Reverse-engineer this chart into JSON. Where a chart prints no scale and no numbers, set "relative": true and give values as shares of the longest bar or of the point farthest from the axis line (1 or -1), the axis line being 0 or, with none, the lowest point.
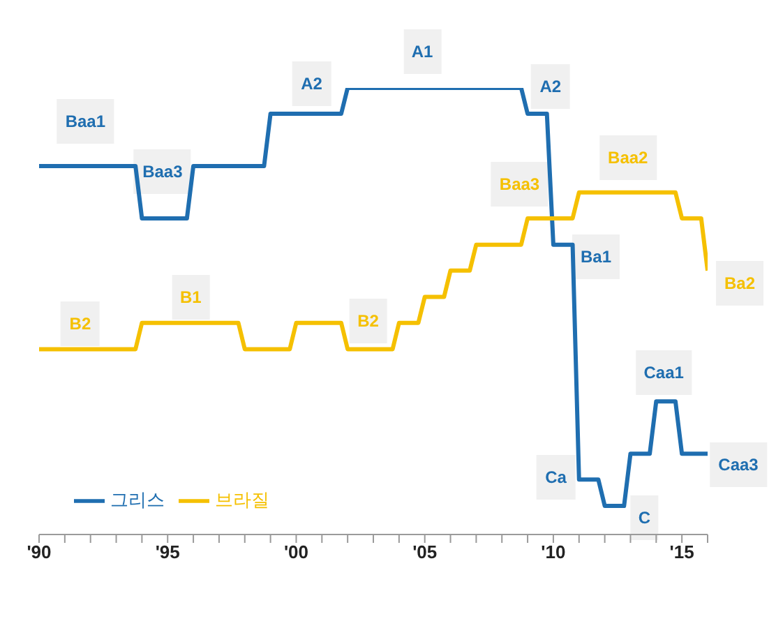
{
  "chart_data": {
    "type": "line",
    "relative": true,
    "xlim": [
      1990,
      2016
    ],
    "xticks": [
      {
        "value": 1990,
        "label": "'90"
      },
      {
        "value": 1991,
        "label": null
      },
      {
        "value": 1992,
        "label": null
      },
      {
        "value": 1993,
        "label": null
      },
      {
        "value": 1994,
        "label": null
      },
      {
        "value": 1995,
        "label": "'95"
      },
      {
        "value": 1996,
        "label": null
      },
      {
        "value": 1997,
        "label": null
      },
      {
        "value": 1998,
        "label": null
      },
      {
        "value": 1999,
        "label": null
      },
      {
        "value": 2000,
        "label": "'00"
      },
      {
        "value": 2001,
        "label": null
      },
      {
        "value": 2002,
        "label": null
      },
      {
        "value": 2003,
        "label": null
      },
      {
        "value": 2004,
        "label": null
      },
      {
        "value": 2005,
        "label": "'05"
      },
      {
        "value": 2006,
        "label": null
      },
      {
        "value": 2007,
        "label": null
      },
      {
        "value": 2008,
        "label": null
      },
      {
        "value": 2009,
        "label": null
      },
      {
        "value": 2010,
        "label": "'10"
      },
      {
        "value": 2011,
        "label": null
      },
      {
        "value": 2012,
        "label": null
      },
      {
        "value": 2013,
        "label": null
      },
      {
        "value": 2014,
        "label": null
      },
      {
        "value": 2015,
        "label": "'15"
      },
      {
        "value": 2016,
        "label": null
      }
    ],
    "series": [
      {
        "name": "그리스",
        "color": "#1f6eb0",
        "x": [
          1990,
          1993.75,
          1994,
          1995.75,
          1996,
          1998.75,
          1999,
          2001.75,
          2002,
          2008.75,
          2009,
          2009.75,
          2010,
          2010.75,
          2011,
          2011.75,
          2012,
          2012.75,
          2013,
          2013.75,
          2014,
          2014.75,
          2015,
          2016
        ],
        "values": [
          0.825,
          0.825,
          0.708,
          0.708,
          0.825,
          0.825,
          0.942,
          0.942,
          1.0,
          1.0,
          0.942,
          0.942,
          0.649,
          0.649,
          0.123,
          0.123,
          0.064,
          0.064,
          0.181,
          0.181,
          0.298,
          0.298,
          0.181,
          0.181
        ]
      },
      {
        "name": "브라질",
        "color": "#f5c000",
        "x": [
          1990,
          1993.75,
          1994,
          1997.75,
          1998,
          1999.75,
          2000,
          2001.75,
          2002,
          2003.75,
          2004,
          2004.75,
          2005,
          2005.75,
          2006,
          2006.75,
          2007,
          2008.75,
          2009,
          2010.75,
          2011,
          2014.75,
          2015,
          2015.75,
          2016
        ],
        "values": [
          0.415,
          0.415,
          0.474,
          0.474,
          0.415,
          0.415,
          0.474,
          0.474,
          0.415,
          0.415,
          0.474,
          0.474,
          0.532,
          0.532,
          0.591,
          0.591,
          0.649,
          0.649,
          0.708,
          0.708,
          0.766,
          0.766,
          0.708,
          0.708,
          0.591
        ]
      }
    ],
    "annotations": [
      {
        "text": "Baa1",
        "x": 1991.8,
        "y": 0.825
      },
      {
        "text": "Baa3",
        "x": 1994.8,
        "y": 0.708
      },
      {
        "text": "A2",
        "x": 2000.6,
        "y": 0.942
      },
      {
        "text": "A1",
        "x": 2004.9,
        "y": 1.0
      },
      {
        "text": "A2",
        "x": 2009.4,
        "y": 0.942
      },
      {
        "text": "Ba1",
        "x": 2010.3,
        "y": 0.649
      },
      {
        "text": "Ca",
        "x": 2011.4,
        "y": 0.123
      },
      {
        "text": "C",
        "x": 2012.4,
        "y": 0.064
      },
      {
        "text": "Caa1",
        "x": 2014.35,
        "y": 0.298
      },
      {
        "text": "Caa3",
        "x": 2016,
        "y": 0.181
      },
      {
        "text": "B2",
        "x": 1991.6,
        "y": 0.415
      },
      {
        "text": "B1",
        "x": 1995.9,
        "y": 0.474
      },
      {
        "text": "B2",
        "x": 2002.8,
        "y": 0.415
      },
      {
        "text": "Baa3",
        "x": 2009.5,
        "y": 0.708
      },
      {
        "text": "Baa2",
        "x": 2012.9,
        "y": 0.766
      },
      {
        "text": "Ba2",
        "x": 2016,
        "y": 0.591
      }
    ],
    "legend": "bottom left",
    "marker": "none",
    "line_style": "solid"
  }
}
